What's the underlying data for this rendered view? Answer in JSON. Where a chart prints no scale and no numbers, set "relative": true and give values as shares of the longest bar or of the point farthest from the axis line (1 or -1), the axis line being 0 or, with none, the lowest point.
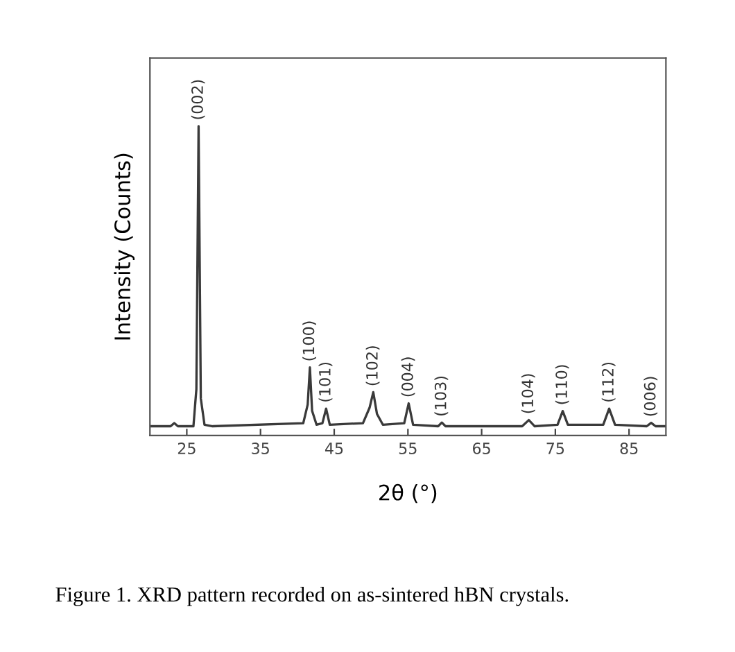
{
  "chart_data": {
    "type": "line",
    "relative": true,
    "xlabel": "2θ (°)",
    "ylabel": "Intensity (Counts)",
    "xlim": [
      20,
      90
    ],
    "xticks": [
      25,
      35,
      45,
      55,
      65,
      75,
      85
    ],
    "tick_labels": "x",
    "grid": false,
    "legend": false,
    "marker": "none",
    "line_style": "solid",
    "x": [
      20,
      22.8,
      23.3,
      23.8,
      25.9,
      26.3,
      26.6,
      26.9,
      27.4,
      28.5,
      40.8,
      41.4,
      41.7,
      42.0,
      42.6,
      43.4,
      43.9,
      44.4,
      48.9,
      49.8,
      50.3,
      50.8,
      51.6,
      54.5,
      55.1,
      55.7,
      59.1,
      59.6,
      60.1,
      70.5,
      71.4,
      72.2,
      75.3,
      76.0,
      76.7,
      81.5,
      82.3,
      83.1,
      87.4,
      88.0,
      88.6,
      90
    ],
    "series": [
      {
        "color": "#3a3a3a",
        "values": [
          0.03,
          0.03,
          0.04,
          0.03,
          0.03,
          0.15,
          1,
          0.12,
          0.035,
          0.03,
          0.04,
          0.1,
          0.22,
          0.08,
          0.035,
          0.04,
          0.087,
          0.035,
          0.04,
          0.09,
          0.14,
          0.07,
          0.035,
          0.04,
          0.104,
          0.035,
          0.03,
          0.042,
          0.03,
          0.03,
          0.05,
          0.03,
          0.035,
          0.079,
          0.035,
          0.035,
          0.087,
          0.035,
          0.03,
          0.041,
          0.03,
          0.03
        ]
      }
    ],
    "annotations": [
      {
        "text": "(002)",
        "x": 26.6,
        "y": 1
      },
      {
        "text": "(100)",
        "x": 41.7,
        "y": 0.22
      },
      {
        "text": "(101)",
        "x": 43.9,
        "y": 0.087
      },
      {
        "text": "(102)",
        "x": 50.3,
        "y": 0.14
      },
      {
        "text": "(004)",
        "x": 55.1,
        "y": 0.104
      },
      {
        "text": "(103)",
        "x": 59.6,
        "y": 0.042
      },
      {
        "text": "(104)",
        "x": 71.4,
        "y": 0.05
      },
      {
        "text": "(110)",
        "x": 76.0,
        "y": 0.079
      },
      {
        "text": "(112)",
        "x": 82.3,
        "y": 0.087
      },
      {
        "text": "(006)",
        "x": 88.0,
        "y": 0.041
      },
      "Figure 1. XRD pattern recorded on as-sintered hBN crystals."
    ]
  }
}
